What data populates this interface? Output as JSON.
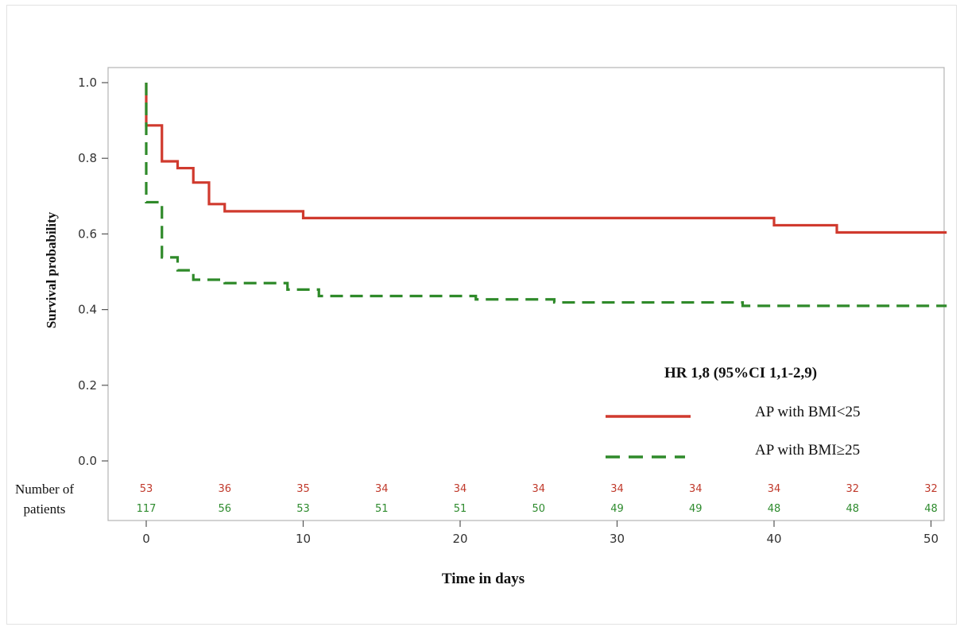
{
  "chart_data": {
    "type": "line",
    "subtype": "kaplan-meier-step",
    "ylabel": "Survival probability",
    "xlabel": "Time in days",
    "xlim": [
      0,
      51
    ],
    "ylim": [
      0,
      1.0
    ],
    "x_ticks": [
      0,
      10,
      20,
      30,
      40,
      50
    ],
    "y_ticks": [
      0.0,
      0.2,
      0.4,
      0.6,
      0.8,
      1.0
    ],
    "y_tick_labels": [
      "0.0",
      "0.2",
      "0.4",
      "0.6",
      "0.8",
      "1.0"
    ],
    "x_tick_labels": [
      "0",
      "10",
      "20",
      "30",
      "40",
      "50"
    ],
    "grid": false,
    "annotation": "HR 1,8 (95%CI 1,1-2,9)",
    "legend_position": "bottom-right",
    "series": [
      {
        "name": "AP with BMI<25",
        "color": "#d03a2e",
        "dash": "solid",
        "steps": [
          [
            0,
            1.0
          ],
          [
            0,
            0.887
          ],
          [
            1,
            0.792
          ],
          [
            2,
            0.774
          ],
          [
            3,
            0.736
          ],
          [
            4,
            0.679
          ],
          [
            5,
            0.66
          ],
          [
            10,
            0.642
          ],
          [
            40,
            0.623
          ],
          [
            44,
            0.604
          ],
          [
            51,
            0.604
          ]
        ]
      },
      {
        "name": "AP with BMI≥25",
        "color": "#2f8a2a",
        "dash": "dashed",
        "steps": [
          [
            0,
            1.0
          ],
          [
            0,
            0.684
          ],
          [
            1,
            0.538
          ],
          [
            2,
            0.504
          ],
          [
            3,
            0.479
          ],
          [
            5,
            0.47
          ],
          [
            9,
            0.453
          ],
          [
            11,
            0.436
          ],
          [
            21,
            0.427
          ],
          [
            26,
            0.419
          ],
          [
            38,
            0.41
          ],
          [
            51,
            0.41
          ]
        ]
      }
    ],
    "risk_table": {
      "label_line1": "Number of",
      "label_line2": "patients",
      "times": [
        0,
        5,
        10,
        15,
        20,
        25,
        30,
        35,
        40,
        45,
        50
      ],
      "rows": [
        {
          "color": "#c0392b",
          "values": [
            "53",
            "36",
            "35",
            "34",
            "34",
            "34",
            "34",
            "34",
            "34",
            "32",
            "32"
          ]
        },
        {
          "color": "#2e8b2e",
          "values": [
            "117",
            "56",
            "53",
            "51",
            "51",
            "50",
            "49",
            "49",
            "48",
            "48",
            "48"
          ]
        }
      ]
    }
  }
}
